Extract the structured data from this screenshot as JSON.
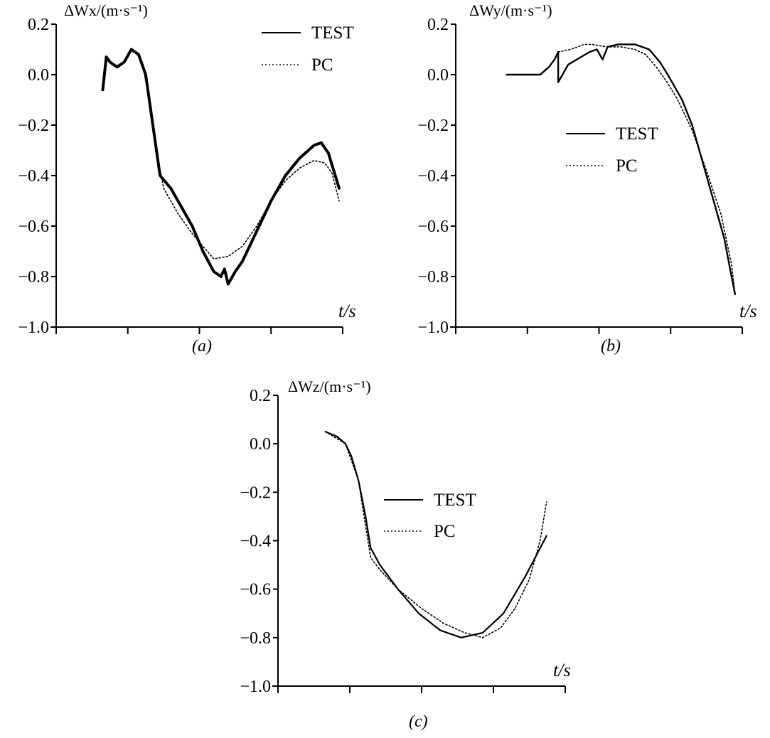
{
  "chart_data": [
    {
      "type": "line",
      "caption": "(a)",
      "ylabel": "ΔWx/(m·s⁻¹)",
      "xlabel": "t/s",
      "ylim": [
        -1.0,
        0.2
      ],
      "yticks": [
        "0.2",
        "0.0",
        "-0.2",
        "-0.4",
        "-0.6",
        "-0.8",
        "-1.0"
      ],
      "xlim": [
        0,
        4
      ],
      "x_tick_count": 5,
      "grid": false,
      "legend_position": "top-right",
      "series": [
        {
          "name": "TEST",
          "style": "solid",
          "x": [
            0.65,
            0.7,
            0.75,
            0.85,
            0.95,
            1.05,
            1.15,
            1.25,
            1.35,
            1.45,
            1.6,
            1.7,
            1.9,
            2.05,
            2.2,
            2.3,
            2.35,
            2.4,
            2.5,
            2.6,
            2.8,
            3.0,
            3.2,
            3.4,
            3.6,
            3.7,
            3.8,
            3.95
          ],
          "y": [
            -0.06,
            0.07,
            0.05,
            0.03,
            0.05,
            0.1,
            0.08,
            0.0,
            -0.2,
            -0.4,
            -0.45,
            -0.5,
            -0.6,
            -0.7,
            -0.78,
            -0.8,
            -0.77,
            -0.83,
            -0.78,
            -0.74,
            -0.62,
            -0.5,
            -0.4,
            -0.33,
            -0.28,
            -0.27,
            -0.31,
            -0.45
          ]
        },
        {
          "name": "PC",
          "style": "dotted",
          "x": [
            1.2,
            1.3,
            1.4,
            1.5,
            1.7,
            1.9,
            2.05,
            2.2,
            2.4,
            2.6,
            2.8,
            3.0,
            3.2,
            3.4,
            3.6,
            3.75,
            3.85,
            3.95
          ],
          "y": [
            0.05,
            -0.1,
            -0.3,
            -0.45,
            -0.55,
            -0.63,
            -0.68,
            -0.73,
            -0.72,
            -0.68,
            -0.6,
            -0.5,
            -0.42,
            -0.37,
            -0.34,
            -0.35,
            -0.39,
            -0.5
          ]
        }
      ]
    },
    {
      "type": "line",
      "caption": "(b)",
      "ylabel": "ΔWy/(m·s⁻¹)",
      "xlabel": "t/s",
      "ylim": [
        -1.0,
        0.2
      ],
      "yticks": [
        "0.2",
        "0.0",
        "-0.2",
        "-0.4",
        "-0.6",
        "-0.8",
        "-1.0"
      ],
      "xlim": [
        0,
        4
      ],
      "x_tick_count": 5,
      "grid": false,
      "legend_position": "center",
      "series": [
        {
          "name": "TEST",
          "style": "solid",
          "x": [
            0.71,
            0.9,
            1.18,
            1.3,
            1.38,
            1.43,
            1.43,
            1.57,
            1.75,
            1.87,
            1.97,
            2.05,
            2.12,
            2.27,
            2.5,
            2.7,
            2.85,
            2.96,
            3.16,
            3.3,
            3.45,
            3.6,
            3.75,
            3.85,
            3.9
          ],
          "y": [
            0.0,
            0.0,
            0.0,
            0.03,
            0.06,
            0.09,
            -0.03,
            0.04,
            0.07,
            0.09,
            0.1,
            0.06,
            0.11,
            0.12,
            0.12,
            0.1,
            0.05,
            0.0,
            -0.1,
            -0.2,
            -0.35,
            -0.5,
            -0.65,
            -0.8,
            -0.87
          ]
        },
        {
          "name": "PC",
          "style": "dotted",
          "x": [
            1.43,
            1.6,
            1.8,
            1.9,
            2.1,
            2.3,
            2.5,
            2.65,
            2.8,
            2.95,
            3.1,
            3.3,
            3.5,
            3.7,
            3.85,
            3.9
          ],
          "y": [
            0.09,
            0.1,
            0.12,
            0.12,
            0.11,
            0.11,
            0.1,
            0.08,
            0.03,
            -0.03,
            -0.1,
            -0.22,
            -0.38,
            -0.55,
            -0.75,
            -0.87
          ]
        }
      ]
    },
    {
      "type": "line",
      "caption": "(c)",
      "ylabel": "ΔWz/(m·s⁻¹)",
      "xlabel": "t/s",
      "ylim": [
        -1.0,
        0.2
      ],
      "yticks": [
        "0.2",
        "0.0",
        "-0.2",
        "-0.4",
        "-0.6",
        "-0.8",
        "-1.0"
      ],
      "xlim": [
        0,
        4
      ],
      "x_tick_count": 5,
      "grid": false,
      "legend_position": "center",
      "series": [
        {
          "name": "TEST",
          "style": "solid",
          "x": [
            0.66,
            0.82,
            0.94,
            1.02,
            1.12,
            1.22,
            1.29,
            1.42,
            1.67,
            1.96,
            2.26,
            2.55,
            2.85,
            3.14,
            3.44,
            3.74
          ],
          "y": [
            0.05,
            0.03,
            0.0,
            -0.05,
            -0.15,
            -0.3,
            -0.43,
            -0.5,
            -0.6,
            -0.7,
            -0.77,
            -0.8,
            -0.78,
            -0.7,
            -0.55,
            -0.38
          ]
        },
        {
          "name": "PC",
          "style": "dotted",
          "x": [
            0.66,
            0.94,
            1.12,
            1.29,
            1.42,
            1.67,
            2.0,
            2.3,
            2.6,
            2.85,
            3.1,
            3.3,
            3.5,
            3.65,
            3.74
          ],
          "y": [
            0.05,
            0.0,
            -0.15,
            -0.47,
            -0.52,
            -0.6,
            -0.68,
            -0.74,
            -0.78,
            -0.8,
            -0.76,
            -0.68,
            -0.56,
            -0.4,
            -0.24
          ]
        }
      ]
    }
  ]
}
